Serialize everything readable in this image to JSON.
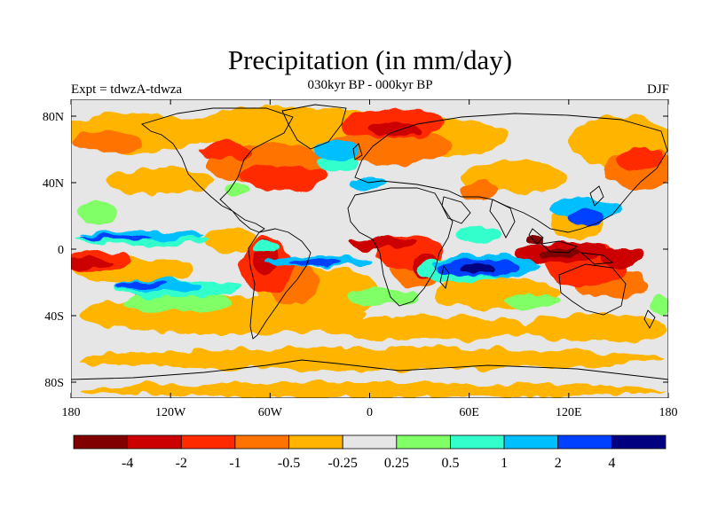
{
  "header": {
    "title": "Precipitation (in mm/day)",
    "subtitle": "030kyr BP - 000kyr BP",
    "left_label": "Expt = tdwzA-tdwza",
    "right_label": "DJF"
  },
  "axes": {
    "x_ticks": [
      "180",
      "120W",
      "60W",
      "0",
      "60E",
      "120E",
      "180"
    ],
    "y_ticks": [
      "80N",
      "40N",
      "0",
      "40S",
      "80S"
    ]
  },
  "colorbar": {
    "colors": [
      "#800000",
      "#cc0000",
      "#ff2a00",
      "#ff7300",
      "#ffb400",
      "#e6e6e6",
      "#80ff66",
      "#33ffcc",
      "#00bfff",
      "#0040ff",
      "#000080"
    ],
    "labels": [
      "-4",
      "-2",
      "-1",
      "-0.5",
      "-0.25",
      "0.25",
      "0.5",
      "1",
      "2",
      "4"
    ]
  }
}
